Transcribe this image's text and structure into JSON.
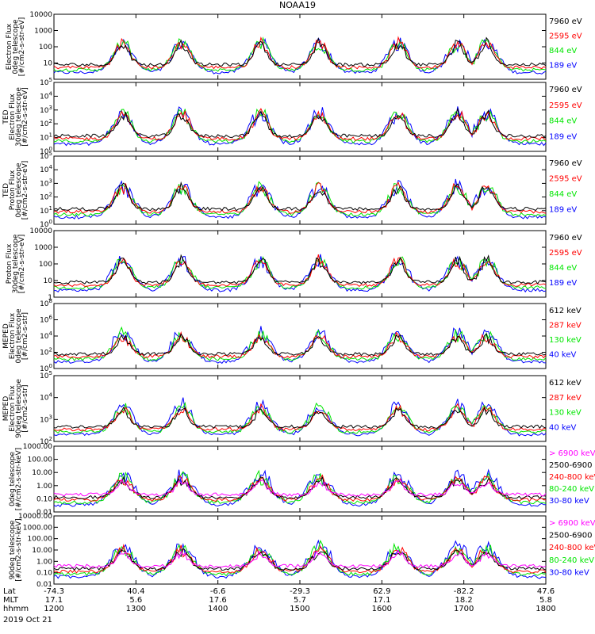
{
  "title": "NOAA19",
  "date": "2019 Oct 21",
  "footer_rows": [
    {
      "label": "Lat",
      "values": [
        "-74.3",
        "40.4",
        "-6.6",
        "-29.3",
        "62.9",
        "-82.2",
        "47.6"
      ]
    },
    {
      "label": "MLT",
      "values": [
        "17.1",
        "5.6",
        "17.6",
        "5.7",
        "17.1",
        "18.2",
        "5.8"
      ]
    },
    {
      "label": "hhmm",
      "values": [
        "1200",
        "1300",
        "1400",
        "1500",
        "1600",
        "1700",
        "1800"
      ]
    }
  ],
  "colors": {
    "black": "#000000",
    "red": "#ff0000",
    "green": "#00e600",
    "blue": "#0000ff",
    "magenta": "#ff00ff"
  },
  "chart_data": [
    {
      "type": "line",
      "title": "",
      "ylabel_lines": [
        "Electron Flux",
        "0deg telescope",
        "[#/cm2-s-str-eV]"
      ],
      "yscale": "log",
      "ylim": [
        1,
        10000
      ],
      "yticks": [
        "10",
        "100",
        "1000",
        "10000"
      ],
      "ytick_values": [
        10,
        100,
        1000,
        10000
      ],
      "series": [
        {
          "name": "7960 eV",
          "color": "#000000"
        },
        {
          "name": "2595 eV",
          "color": "#ff0000"
        },
        {
          "name": "844 eV",
          "color": "#00e600"
        },
        {
          "name": "189 eV",
          "color": "#0000ff"
        }
      ]
    },
    {
      "type": "line",
      "title": "",
      "ylabel_lines": [
        "TED",
        "Electron Flux",
        "30deg telescope",
        "[#/cm2-s-str-eV]"
      ],
      "yscale": "log",
      "ylim": [
        1,
        100000
      ],
      "yticks": [
        "10^0",
        "10^1",
        "10^2",
        "10^3",
        "10^4",
        "10^5"
      ],
      "ytick_values": [
        1,
        10,
        100,
        1000,
        10000,
        100000
      ],
      "series": [
        {
          "name": "7960 eV",
          "color": "#000000"
        },
        {
          "name": "2595 eV",
          "color": "#ff0000"
        },
        {
          "name": "844 eV",
          "color": "#00e600"
        },
        {
          "name": "189 eV",
          "color": "#0000ff"
        }
      ]
    },
    {
      "type": "line",
      "title": "",
      "ylabel_lines": [
        "TED",
        "Proton Flux",
        "0deg telescope",
        "[#/cm2-s-str-eV]"
      ],
      "yscale": "log",
      "ylim": [
        1,
        100000
      ],
      "yticks": [
        "10^0",
        "10^1",
        "10^2",
        "10^3",
        "10^4",
        "10^5"
      ],
      "ytick_values": [
        1,
        10,
        100,
        1000,
        10000,
        100000
      ],
      "series": [
        {
          "name": "7960 eV",
          "color": "#000000"
        },
        {
          "name": "2595 eV",
          "color": "#ff0000"
        },
        {
          "name": "844 eV",
          "color": "#00e600"
        },
        {
          "name": "189 eV",
          "color": "#0000ff"
        }
      ]
    },
    {
      "type": "line",
      "title": "",
      "ylabel_lines": [
        "Proton Flux",
        "30deg telescope",
        "[#/cm2-s-str-eV]"
      ],
      "yscale": "log",
      "ylim": [
        1,
        10000
      ],
      "yticks": [
        "1",
        "10",
        "100",
        "1000",
        "10000"
      ],
      "ytick_values": [
        1,
        10,
        100,
        1000,
        10000
      ],
      "series": [
        {
          "name": "7960 eV",
          "color": "#000000"
        },
        {
          "name": "2595 eV",
          "color": "#ff0000"
        },
        {
          "name": "844 eV",
          "color": "#00e600"
        },
        {
          "name": "189 eV",
          "color": "#0000ff"
        }
      ]
    },
    {
      "type": "line",
      "title": "",
      "ylabel_lines": [
        "MEPED",
        "Electron Flux",
        "0deg telescope",
        "[#/cm2-s-str]"
      ],
      "yscale": "log",
      "ylim": [
        1,
        100000000
      ],
      "yticks": [
        "10^0",
        "10^2",
        "10^4",
        "10^6",
        "10^8"
      ],
      "ytick_values": [
        1,
        100,
        10000,
        1000000,
        100000000
      ],
      "series": [
        {
          "name": "612 keV",
          "color": "#000000"
        },
        {
          "name": "287 keV",
          "color": "#ff0000"
        },
        {
          "name": "130 keV",
          "color": "#00e600"
        },
        {
          "name": "40 keV",
          "color": "#0000ff"
        }
      ]
    },
    {
      "type": "line",
      "title": "",
      "ylabel_lines": [
        "MEPED",
        "Electron Flux",
        "90deg telescope",
        "[#/cm2-s-str]"
      ],
      "yscale": "log",
      "ylim": [
        100,
        100000
      ],
      "yticks": [
        "10^2",
        "10^3",
        "10^4",
        "10^5"
      ],
      "ytick_values": [
        100,
        1000,
        10000,
        100000
      ],
      "series": [
        {
          "name": "612 keV",
          "color": "#000000"
        },
        {
          "name": "287 keV",
          "color": "#ff0000"
        },
        {
          "name": "130 keV",
          "color": "#00e600"
        },
        {
          "name": "40 keV",
          "color": "#0000ff"
        }
      ]
    },
    {
      "type": "line",
      "title": "",
      "ylabel_lines": [
        "0deg telescope",
        "[#/cm2-s-str-keV]"
      ],
      "yscale": "log",
      "ylim": [
        0.01,
        1000
      ],
      "yticks": [
        "1000.00",
        "100.00",
        "10.00",
        "1.00",
        "0.10",
        "0.01"
      ],
      "ytick_values": [
        1000,
        100,
        10,
        1,
        0.1,
        0.01
      ],
      "series": [
        {
          "name": "> 6900 keV",
          "color": "#ff00ff"
        },
        {
          "name": "2500-6900",
          "color": "#000000"
        },
        {
          "name": "240-800 keV",
          "color": "#ff0000"
        },
        {
          "name": "80-240 keV",
          "color": "#00e600"
        },
        {
          "name": "30-80 keV",
          "color": "#0000ff"
        }
      ]
    },
    {
      "type": "line",
      "title": "",
      "ylabel_lines": [
        "90deg telescope",
        "[#/cm2-s-str-keV]"
      ],
      "yscale": "log",
      "ylim": [
        0.01,
        10000
      ],
      "yticks": [
        "10000.00",
        "1000.00",
        "100.00",
        "10.00",
        "1.00",
        "0.10",
        "0.01"
      ],
      "ytick_values": [
        10000,
        1000,
        100,
        10,
        1,
        0.1,
        0.01
      ],
      "series": [
        {
          "name": "> 6900 keV",
          "color": "#ff00ff"
        },
        {
          "name": "2500-6900",
          "color": "#000000"
        },
        {
          "name": "240-800 keV",
          "color": "#ff0000"
        },
        {
          "name": "80-240 keV",
          "color": "#00e600"
        },
        {
          "name": "30-80 keV",
          "color": "#0000ff"
        }
      ]
    }
  ]
}
